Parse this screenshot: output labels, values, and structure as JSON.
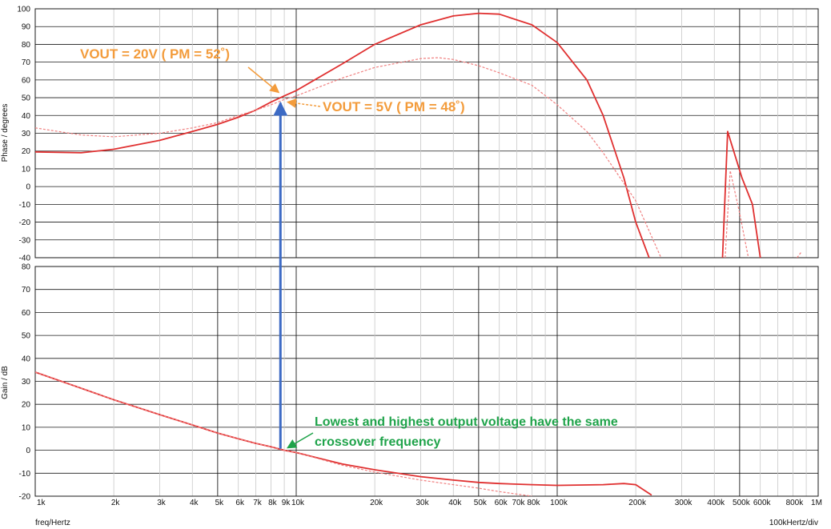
{
  "chart_data": [
    {
      "type": "line",
      "panel": "phase",
      "xscale": "log",
      "xlim": [
        1000,
        1000000
      ],
      "ylim": [
        -40,
        100
      ],
      "ylabel": "Phase / degrees",
      "yticks": [
        -40,
        -30,
        -20,
        -10,
        0,
        10,
        20,
        30,
        40,
        50,
        60,
        70,
        80,
        90,
        100
      ],
      "grid": true,
      "series": [
        {
          "name": "",
          "style": "solid",
          "color": "#e03030",
          "x": [
            1000,
            1500,
            2000,
            3000,
            4000,
            5000,
            6000,
            7000,
            8000,
            9000,
            10000,
            15000,
            20000,
            30000,
            40000,
            50000,
            60000,
            80000,
            100000,
            130000,
            150000,
            180000,
            200000,
            225000
          ],
          "y": [
            19.5,
            19,
            21,
            26,
            31,
            35,
            39,
            43,
            47.5,
            51,
            54,
            69,
            80,
            91,
            96,
            97.5,
            97,
            91,
            81,
            60,
            40,
            5,
            -20,
            -40
          ]
        },
        {
          "name": "",
          "style": "dashed",
          "color": "#f08080",
          "x": [
            1000,
            1500,
            2000,
            3000,
            4000,
            5000,
            6000,
            7000,
            8000,
            9000,
            10000,
            15000,
            20000,
            30000,
            35000,
            40000,
            50000,
            60000,
            80000,
            100000,
            130000,
            150000,
            200000,
            250000
          ],
          "y": [
            33,
            29,
            28,
            30,
            33,
            36,
            40,
            43,
            46,
            49,
            51,
            61,
            67,
            72,
            72.5,
            71.5,
            68,
            64,
            57,
            46,
            31,
            19,
            -8,
            -40
          ]
        },
        {
          "name": "",
          "style": "solid",
          "color": "#e03030",
          "x": [
            430000,
            450000,
            510000,
            560000,
            600000
          ],
          "y": [
            -40,
            31,
            5,
            -10,
            -40
          ]
        },
        {
          "name": "",
          "style": "dashed",
          "color": "#f08080",
          "x": [
            440000,
            460000,
            500000,
            540000
          ],
          "y": [
            -40,
            9,
            -15,
            -40
          ]
        },
        {
          "name": "",
          "style": "dashed",
          "color": "#f08080",
          "x": [
            830000,
            860000
          ],
          "y": [
            -40,
            -37
          ]
        }
      ]
    },
    {
      "type": "line",
      "panel": "gain",
      "xscale": "log",
      "xlim": [
        1000,
        1000000
      ],
      "ylim": [
        -20,
        80
      ],
      "ylabel": "Gain / dB",
      "xlabel": "freq/Hertz",
      "yticks": [
        -20,
        -10,
        0,
        10,
        20,
        30,
        40,
        50,
        60,
        70,
        80
      ],
      "grid": true,
      "series": [
        {
          "name": "",
          "style": "solid",
          "color": "#e03030",
          "x": [
            1000,
            1500,
            2000,
            3000,
            4000,
            5000,
            6000,
            7000,
            8000,
            9000,
            10000,
            15000,
            20000,
            30000,
            40000,
            50000,
            60000,
            80000,
            100000,
            150000,
            180000,
            200000,
            230000
          ],
          "y": [
            34,
            27,
            22,
            15.5,
            11,
            7.5,
            5,
            3,
            1.5,
            0,
            -1,
            -6,
            -8.5,
            -11.5,
            -13,
            -14,
            -14.5,
            -15,
            -15.3,
            -15,
            -14.5,
            -15,
            -19.5
          ]
        },
        {
          "name": "",
          "style": "dashed",
          "color": "#f08080",
          "x": [
            1000,
            1500,
            2000,
            3000,
            4000,
            5000,
            6000,
            7000,
            8000,
            9000,
            10000,
            15000,
            20000,
            30000,
            40000,
            50000,
            60000,
            80000
          ],
          "y": [
            34,
            27,
            22,
            15.5,
            11,
            7.5,
            5,
            3,
            1.5,
            0,
            -1,
            -6.5,
            -9.5,
            -13,
            -15,
            -16.5,
            -18,
            -20
          ]
        }
      ]
    }
  ],
  "x_tick_labels": [
    {
      "value": 1000,
      "label": "1k"
    },
    {
      "value": 2000,
      "label": "2k"
    },
    {
      "value": 3000,
      "label": "3k"
    },
    {
      "value": 4000,
      "label": "4k"
    },
    {
      "value": 5000,
      "label": "5k"
    },
    {
      "value": 6000,
      "label": "6k"
    },
    {
      "value": 7000,
      "label": "7k"
    },
    {
      "value": 8000,
      "label": "8k"
    },
    {
      "value": 9000,
      "label": "9k"
    },
    {
      "value": 10000,
      "label": "10k"
    },
    {
      "value": 20000,
      "label": "20k"
    },
    {
      "value": 30000,
      "label": "30k"
    },
    {
      "value": 40000,
      "label": "40k"
    },
    {
      "value": 50000,
      "label": "50k"
    },
    {
      "value": 60000,
      "label": "60k"
    },
    {
      "value": 70000,
      "label": "70k"
    },
    {
      "value": 80000,
      "label": "80k"
    },
    {
      "value": 100000,
      "label": "100k"
    },
    {
      "value": 200000,
      "label": "200k"
    },
    {
      "value": 300000,
      "label": "300k"
    },
    {
      "value": 400000,
      "label": "400k"
    },
    {
      "value": 500000,
      "label": "500k"
    },
    {
      "value": 600000,
      "label": "600k"
    },
    {
      "value": 800000,
      "label": "800k"
    },
    {
      "value": 1000000,
      "label": "1M"
    }
  ],
  "x_div_label": "100kHertz/div",
  "annotations": {
    "vout20": {
      "text": "VOUT = 20V ( PM = 52˚)",
      "point": {
        "x": 8700,
        "y": 52
      },
      "color": "#f39c3c"
    },
    "vout5": {
      "text": "VOUT = 5V ( PM = 48˚)",
      "point": {
        "x": 9000,
        "y": 48
      },
      "color": "#f39c3c"
    },
    "crossover": {
      "line1": "Lowest and highest output voltage have the same",
      "line2": "crossover frequency",
      "point": {
        "x": 9000,
        "y": 0
      },
      "color": "#1fa34a"
    },
    "marker": {
      "x": 8700,
      "phase": 48,
      "color": "#3c6ac4"
    }
  }
}
